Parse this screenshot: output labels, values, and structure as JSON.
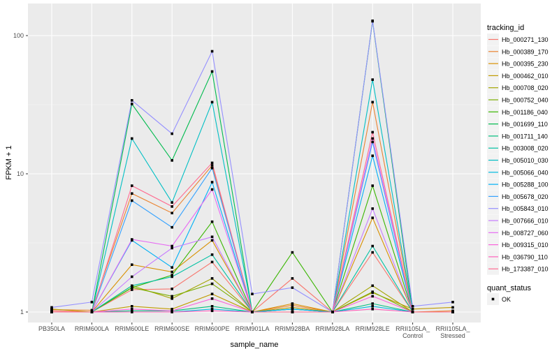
{
  "chart_data": {
    "type": "line",
    "title": "",
    "xlabel": "sample_name",
    "ylabel": "FPKM + 1",
    "yscale": "log10",
    "ylim": [
      0.93,
      190
    ],
    "yticks": [
      1,
      10,
      100
    ],
    "ytick_labels": [
      "1",
      "10",
      "100"
    ],
    "grid": true,
    "legend_placement": "right",
    "categories": [
      "PB350LA",
      "RRIM600LA",
      "RRIM600LE",
      "RRIM600SE",
      "RRIM600PE",
      "RRIM901LA",
      "RRIM928BA",
      "RRIM928LA",
      "RRIM928LE",
      "RRII105LA_Control",
      "RRII105LA_Stressed"
    ],
    "legend_title": "tracking_id",
    "series": [
      {
        "name": "Hb_000271_130",
        "color": "#F8766D",
        "values": [
          1.02,
          1.0,
          1.45,
          1.47,
          2.3,
          1.0,
          1.75,
          1.0,
          2.7,
          1.0,
          1.0
        ]
      },
      {
        "name": "Hb_000389_170",
        "color": "#EA8331",
        "values": [
          1.04,
          1.03,
          7.2,
          5.2,
          11.5,
          1.0,
          1.12,
          1.0,
          33,
          1.0,
          1.02
        ]
      },
      {
        "name": "Hb_000395_230",
        "color": "#D89000",
        "values": [
          1.0,
          1.0,
          2.2,
          1.95,
          3.3,
          1.0,
          1.15,
          1.0,
          4.8,
          1.0,
          1.0
        ]
      },
      {
        "name": "Hb_000462_010",
        "color": "#C09B00",
        "values": [
          1.05,
          1.0,
          1.1,
          1.05,
          1.35,
          1.0,
          1.08,
          1.0,
          1.38,
          1.05,
          1.08
        ]
      },
      {
        "name": "Hb_000708_020",
        "color": "#A3A500",
        "values": [
          1.0,
          1.0,
          1.55,
          1.25,
          1.75,
          1.0,
          1.05,
          1.0,
          1.55,
          1.0,
          1.0
        ]
      },
      {
        "name": "Hb_000752_040",
        "color": "#7CAE00",
        "values": [
          1.0,
          1.0,
          1.5,
          1.3,
          1.6,
          1.0,
          1.0,
          1.0,
          1.4,
          1.0,
          1.0
        ]
      },
      {
        "name": "Hb_001186_040",
        "color": "#39B600",
        "values": [
          1.0,
          1.0,
          1.5,
          1.85,
          4.5,
          1.0,
          2.7,
          1.0,
          8.2,
          1.0,
          1.0
        ]
      },
      {
        "name": "Hb_001699_110",
        "color": "#00BB4E",
        "values": [
          1.0,
          1.0,
          32,
          12.5,
          55,
          1.0,
          1.05,
          1.0,
          127,
          1.0,
          1.0
        ]
      },
      {
        "name": "Hb_001711_140",
        "color": "#00BF7D",
        "values": [
          1.0,
          1.0,
          1.02,
          1.02,
          1.1,
          1.0,
          1.0,
          1.0,
          1.15,
          1.0,
          1.0
        ]
      },
      {
        "name": "Hb_003008_020",
        "color": "#00C1A3",
        "values": [
          1.0,
          1.0,
          1.55,
          1.8,
          2.6,
          1.0,
          1.0,
          1.0,
          3.0,
          1.0,
          1.0
        ]
      },
      {
        "name": "Hb_005010_030",
        "color": "#00BFC4",
        "values": [
          1.0,
          1.0,
          18,
          6.2,
          33,
          1.0,
          1.05,
          1.0,
          48,
          1.0,
          1.0
        ]
      },
      {
        "name": "Hb_005066_040",
        "color": "#00BAE0",
        "values": [
          1.0,
          1.0,
          1.0,
          1.0,
          1.05,
          1.0,
          1.0,
          1.0,
          1.1,
          1.0,
          1.0
        ]
      },
      {
        "name": "Hb_005288_100",
        "color": "#00B0F6",
        "values": [
          1.0,
          1.0,
          3.3,
          2.1,
          8.7,
          1.0,
          1.05,
          1.0,
          13.5,
          1.0,
          1.0
        ]
      },
      {
        "name": "Hb_005678_020",
        "color": "#35A2FF",
        "values": [
          1.0,
          1.0,
          6.4,
          4.1,
          11,
          1.0,
          1.0,
          1.0,
          17,
          1.0,
          1.0
        ]
      },
      {
        "name": "Hb_005843_010",
        "color": "#9590FF",
        "values": [
          1.08,
          1.18,
          34,
          19.5,
          77,
          1.35,
          1.5,
          1.0,
          128,
          1.1,
          1.18
        ]
      },
      {
        "name": "Hb_007666_010",
        "color": "#C77CFF",
        "values": [
          1.0,
          1.0,
          1.8,
          2.9,
          3.5,
          1.0,
          1.0,
          1.0,
          5.6,
          1.0,
          1.0
        ]
      },
      {
        "name": "Hb_008727_060",
        "color": "#E76BF3",
        "values": [
          1.0,
          1.0,
          3.35,
          3.0,
          7.7,
          1.0,
          1.0,
          1.0,
          18,
          1.0,
          1.0
        ]
      },
      {
        "name": "Hb_009315_010",
        "color": "#FA62DB",
        "values": [
          1.0,
          1.0,
          1.05,
          1.02,
          1.25,
          1.0,
          1.0,
          1.0,
          1.3,
          1.0,
          1.0
        ]
      },
      {
        "name": "Hb_036790_110",
        "color": "#FF62BC",
        "values": [
          1.0,
          1.0,
          1.0,
          1.0,
          1.02,
          1.0,
          1.0,
          1.0,
          1.05,
          1.0,
          1.0
        ]
      },
      {
        "name": "Hb_173387_010",
        "color": "#FF6C91",
        "values": [
          1.0,
          1.0,
          8.2,
          5.8,
          12,
          1.0,
          1.0,
          1.0,
          20,
          1.0,
          1.0
        ]
      }
    ],
    "legend2_title": "quant_status",
    "legend2_items": [
      "OK"
    ]
  }
}
